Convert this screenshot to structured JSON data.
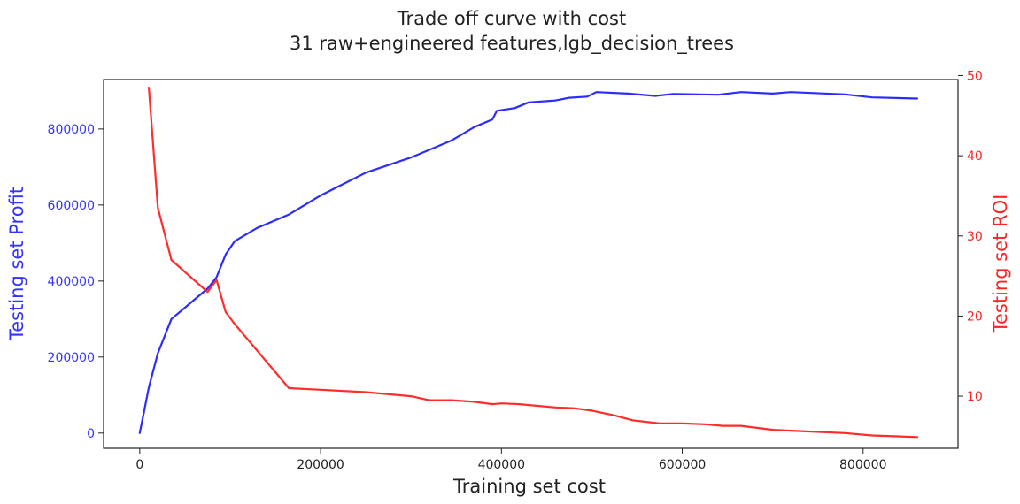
{
  "chart_data": {
    "type": "line",
    "title_line1": "Trade off curve with cost",
    "title_line2": "31 raw+engineered features,lgb_decision_trees",
    "xlabel": "Training set cost",
    "ylabel_left": "Testing set Profit",
    "ylabel_right": "Testing set ROI",
    "xlim": [
      -40000,
      905000
    ],
    "ylim_left": [
      -40000,
      930000
    ],
    "ylim_right": [
      3.5,
      49.5
    ],
    "x_ticks": [
      0,
      200000,
      400000,
      600000,
      800000
    ],
    "x_tick_labels": [
      "0",
      "200000",
      "400000",
      "600000",
      "800000"
    ],
    "y_left_ticks": [
      0,
      200000,
      400000,
      600000,
      800000
    ],
    "y_left_tick_labels": [
      "0",
      "200000",
      "400000",
      "600000",
      "800000"
    ],
    "y_right_ticks": [
      10,
      20,
      30,
      40,
      50
    ],
    "y_right_tick_labels": [
      "10",
      "20",
      "30",
      "40",
      "50"
    ],
    "colors": {
      "profit": "#1a1aff",
      "roi": "#ff1a1a",
      "left_axis_text": "#3333ff",
      "right_axis_text": "#ff2222",
      "frame": "#222222"
    },
    "series": [
      {
        "name": "Testing set Profit",
        "axis": "left",
        "color": "#1a1aff",
        "x": [
          0,
          5000,
          10000,
          20000,
          35000,
          55000,
          75000,
          85000,
          95000,
          105000,
          130000,
          165000,
          200000,
          250000,
          300000,
          345000,
          370000,
          390000,
          395000,
          415000,
          430000,
          460000,
          475000,
          495000,
          505000,
          540000,
          570000,
          590000,
          640000,
          665000,
          700000,
          720000,
          780000,
          810000,
          860000
        ],
        "y": [
          0,
          60000,
          120000,
          210000,
          300000,
          340000,
          380000,
          410000,
          470000,
          505000,
          540000,
          575000,
          625000,
          685000,
          725000,
          770000,
          805000,
          825000,
          848000,
          855000,
          870000,
          875000,
          882000,
          885000,
          897000,
          893000,
          887000,
          892000,
          890000,
          897000,
          893000,
          897000,
          891000,
          883000,
          880000
        ]
      },
      {
        "name": "Testing set ROI",
        "axis": "right",
        "color": "#ff1a1a",
        "x": [
          10000,
          20000,
          35000,
          75000,
          85000,
          95000,
          105000,
          165000,
          200000,
          250000,
          300000,
          320000,
          345000,
          370000,
          390000,
          400000,
          420000,
          440000,
          460000,
          480000,
          500000,
          525000,
          545000,
          575000,
          600000,
          625000,
          645000,
          665000,
          700000,
          720000,
          780000,
          810000,
          860000
        ],
        "y": [
          48.5,
          33.5,
          27,
          23,
          24.5,
          20.5,
          19,
          11,
          10.8,
          10.5,
          10,
          9.5,
          9.5,
          9.3,
          9,
          9.1,
          9,
          8.8,
          8.6,
          8.5,
          8.2,
          7.6,
          7,
          6.6,
          6.6,
          6.5,
          6.3,
          6.3,
          5.8,
          5.7,
          5.4,
          5.1,
          4.9
        ]
      }
    ]
  }
}
